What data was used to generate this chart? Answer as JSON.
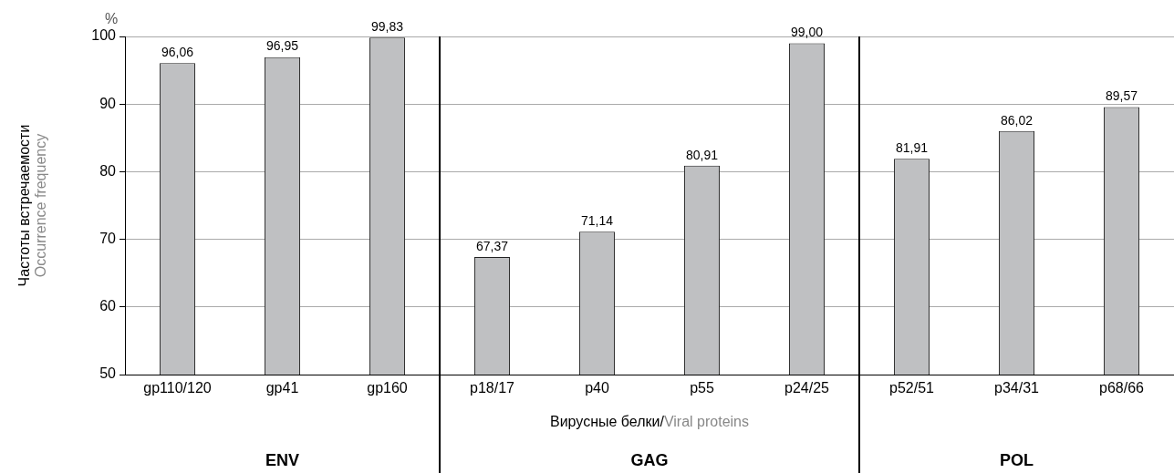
{
  "chart_data": {
    "type": "bar",
    "ylabel": "Частоты встречаемости\nOccurrence frequency",
    "xlabel": "Вирусные белки/Viral proteins",
    "categories": [
      "gp110/120",
      "gp41",
      "gp160",
      "p18/17",
      "p40",
      "p55",
      "p24/25",
      "p52/51",
      "p34/31",
      "p68/66"
    ],
    "values": [
      96.06,
      96.95,
      99.83,
      67.37,
      71.14,
      80.91,
      99.0,
      81.91,
      86.02,
      89.57
    ],
    "value_labels": [
      "96,06",
      "96,95",
      "99,83",
      "67,37",
      "71,14",
      "80,91",
      "99,00",
      "81,91",
      "86,02",
      "89,57"
    ],
    "color": "#bfc0c2",
    "ylim": [
      50,
      100
    ],
    "yticks": [
      50,
      60,
      70,
      80,
      90,
      100
    ],
    "grid": "y",
    "legend": false,
    "annotations": [
      "%",
      "ENV",
      "GAG",
      "POL"
    ]
  }
}
